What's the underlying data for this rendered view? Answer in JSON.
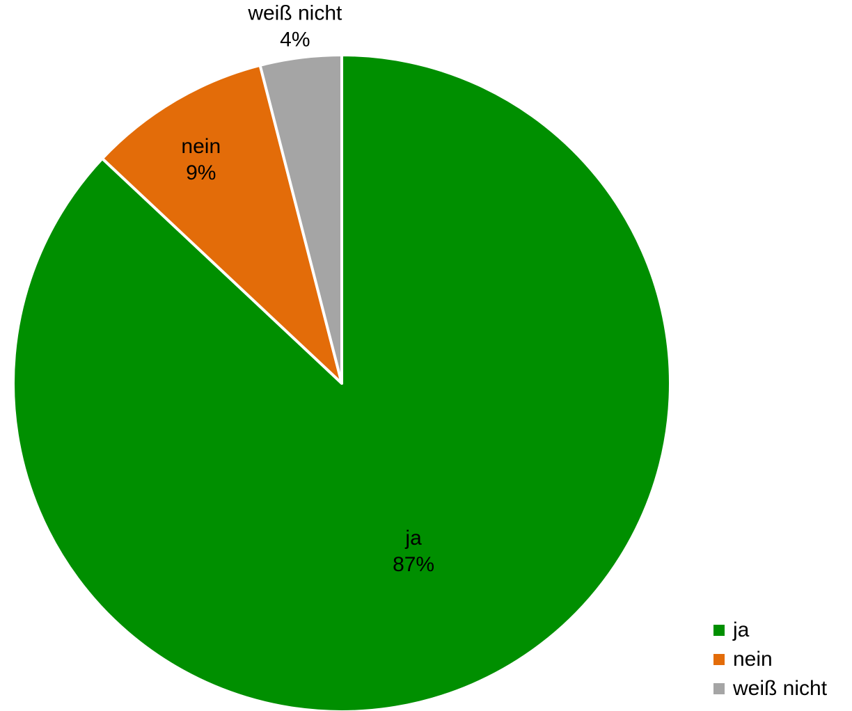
{
  "chart_data": {
    "type": "pie",
    "title": "",
    "categories": [
      "ja",
      "nein",
      "weiß nicht"
    ],
    "values": [
      87,
      9,
      4
    ],
    "value_labels": [
      "87%",
      "9%",
      "4%"
    ],
    "colors": [
      "#008f00",
      "#e36c09",
      "#a5a5a5"
    ],
    "start_angle": "12 o'clock, clockwise",
    "data_labels": "category and percentage",
    "legend_position": "bottom-right"
  },
  "legend": {
    "items": [
      {
        "label": "ja",
        "color": "#008f00"
      },
      {
        "label": "nein",
        "color": "#e36c09"
      },
      {
        "label": "weiß nicht",
        "color": "#a5a5a5"
      }
    ]
  }
}
